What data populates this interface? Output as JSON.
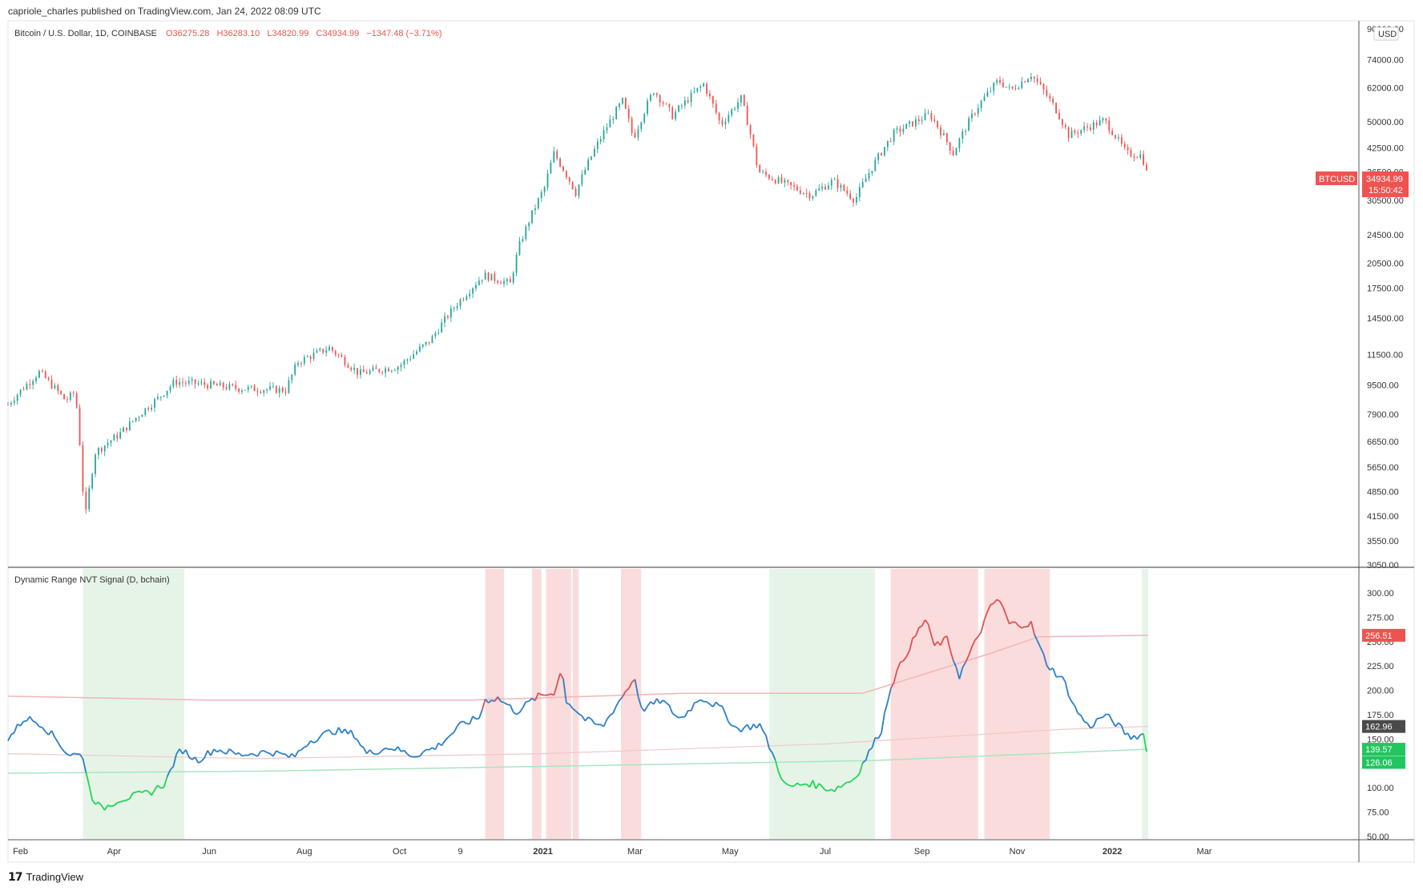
{
  "attribution": "capriole_charles published on TradingView.com, Jan 24, 2022 08:09 UTC",
  "footer": {
    "brand": "TradingView",
    "logo_icon": "tradingview-logo-icon"
  },
  "colors": {
    "up": "#26a69a",
    "down": "#ef5350",
    "nvt_blue": "#2a7fc9",
    "nvt_green": "#1fd655",
    "nvt_red": "#e05050",
    "band_red": "#f9d0d0",
    "band_green": "#e3f3e4",
    "price_tag": "#ef5350",
    "gray_tag": "#4a4a4a",
    "green_tag": "#22c55e"
  },
  "chart_data": [
    {
      "type": "candlestick",
      "title": "Bitcoin / U.S. Dollar, 1D, COINBASE",
      "ohlc_label": {
        "o": "O36275.28",
        "h": "H36283.10",
        "l": "L34820.99",
        "c": "C34934.99",
        "change": "−1347.48 (−3.71%)"
      },
      "currency": "USD",
      "y_scale": "log",
      "ylim": [
        3050,
        90000
      ],
      "y_ticks": [
        "90000.00",
        "74000.00",
        "62000.00",
        "50000.00",
        "42500.00",
        "36500.00",
        "30500.00",
        "24500.00",
        "20500.00",
        "17500.00",
        "14500.00",
        "11500.00",
        "9500.00",
        "7900.00",
        "6650.00",
        "5650.00",
        "4850.00",
        "4150.00",
        "3550.00",
        "3050.00"
      ],
      "x_ticks": [
        "Feb",
        "Apr",
        "Jun",
        "Aug",
        "Oct",
        "9",
        "2021",
        "Mar",
        "May",
        "Jul",
        "Sep",
        "Nov",
        "2022",
        "Mar"
      ],
      "x_range": [
        "2020-01-24",
        "2022-03-20"
      ],
      "price_path": [
        [
          "2020-01-24",
          8400
        ],
        [
          "2020-02-13",
          10300
        ],
        [
          "2020-03-01",
          8600
        ],
        [
          "2020-03-07",
          9100
        ],
        [
          "2020-03-12",
          4900
        ],
        [
          "2020-03-13",
          3900
        ],
        [
          "2020-03-20",
          6200
        ],
        [
          "2020-04-05",
          7000
        ],
        [
          "2020-04-30",
          8800
        ],
        [
          "2020-05-10",
          9700
        ],
        [
          "2020-06-01",
          9500
        ],
        [
          "2020-06-20",
          9300
        ],
        [
          "2020-07-20",
          9200
        ],
        [
          "2020-07-28",
          11000
        ],
        [
          "2020-08-17",
          12000
        ],
        [
          "2020-09-05",
          10200
        ],
        [
          "2020-10-01",
          10700
        ],
        [
          "2020-10-21",
          12600
        ],
        [
          "2020-11-05",
          15500
        ],
        [
          "2020-11-24",
          19000
        ],
        [
          "2020-12-11",
          18000
        ],
        [
          "2020-12-17",
          23000
        ],
        [
          "2021-01-02",
          33000
        ],
        [
          "2021-01-08",
          41000
        ],
        [
          "2021-01-22",
          32000
        ],
        [
          "2021-02-08",
          46000
        ],
        [
          "2021-02-21",
          57000
        ],
        [
          "2021-02-28",
          45000
        ],
        [
          "2021-03-13",
          61000
        ],
        [
          "2021-03-25",
          52000
        ],
        [
          "2021-04-14",
          63500
        ],
        [
          "2021-04-25",
          49000
        ],
        [
          "2021-05-08",
          58000
        ],
        [
          "2021-05-19",
          36500
        ],
        [
          "2021-06-07",
          33500
        ],
        [
          "2021-06-22",
          31500
        ],
        [
          "2021-07-06",
          34500
        ],
        [
          "2021-07-20",
          30500
        ],
        [
          "2021-08-14",
          46500
        ],
        [
          "2021-09-06",
          52500
        ],
        [
          "2021-09-21",
          41000
        ],
        [
          "2021-10-06",
          54500
        ],
        [
          "2021-10-20",
          65000
        ],
        [
          "2021-10-28",
          61000
        ],
        [
          "2021-11-10",
          67500
        ],
        [
          "2021-11-26",
          54000
        ],
        [
          "2021-12-04",
          46000
        ],
        [
          "2021-12-27",
          50500
        ],
        [
          "2022-01-10",
          41000
        ],
        [
          "2022-01-20",
          40500
        ],
        [
          "2022-01-24",
          34935
        ]
      ],
      "last_price_tag": {
        "label": "BTCUSD",
        "value": "34934.99",
        "countdown": "15:50:42"
      }
    },
    {
      "type": "line",
      "title": "Dynamic Range NVT Signal (D, bchain)",
      "ylim": [
        50,
        300
      ],
      "y_ticks": [
        "300.00",
        "275.00",
        "250.00",
        "225.00",
        "200.00",
        "175.00",
        "150.00",
        "125.00",
        "100.00",
        "75.00",
        "50.00"
      ],
      "nvt_path": [
        [
          "2020-01-24",
          150
        ],
        [
          "2020-02-04",
          172
        ],
        [
          "2020-02-14",
          166
        ],
        [
          "2020-02-24",
          150
        ],
        [
          "2020-03-02",
          135
        ],
        [
          "2020-03-12",
          133
        ],
        [
          "2020-03-17",
          93
        ],
        [
          "2020-03-24",
          78
        ],
        [
          "2020-04-04",
          88
        ],
        [
          "2020-04-24",
          95
        ],
        [
          "2020-05-04",
          105
        ],
        [
          "2020-05-09",
          125
        ],
        [
          "2020-05-14",
          140
        ],
        [
          "2020-05-24",
          128
        ],
        [
          "2020-06-05",
          140
        ],
        [
          "2020-06-20",
          134
        ],
        [
          "2020-07-10",
          137
        ],
        [
          "2020-07-25",
          131
        ],
        [
          "2020-08-04",
          148
        ],
        [
          "2020-08-20",
          159
        ],
        [
          "2020-09-02",
          155
        ],
        [
          "2020-09-10",
          135
        ],
        [
          "2020-09-25",
          142
        ],
        [
          "2020-10-10",
          133
        ],
        [
          "2020-10-25",
          142
        ],
        [
          "2020-11-10",
          165
        ],
        [
          "2020-11-21",
          172
        ],
        [
          "2020-11-25",
          190
        ],
        [
          "2020-12-03",
          192
        ],
        [
          "2020-12-15",
          178
        ],
        [
          "2020-12-28",
          193
        ],
        [
          "2021-01-08",
          198
        ],
        [
          "2021-01-13",
          222
        ],
        [
          "2021-01-16",
          190
        ],
        [
          "2021-01-28",
          170
        ],
        [
          "2021-02-08",
          162
        ],
        [
          "2021-02-20",
          192
        ],
        [
          "2021-03-01",
          213
        ],
        [
          "2021-03-05",
          180
        ],
        [
          "2021-03-18",
          190
        ],
        [
          "2021-03-30",
          170
        ],
        [
          "2021-04-12",
          193
        ],
        [
          "2021-04-25",
          182
        ],
        [
          "2021-05-05",
          160
        ],
        [
          "2021-05-20",
          165
        ],
        [
          "2021-05-26",
          143
        ],
        [
          "2021-06-06",
          100
        ],
        [
          "2021-06-20",
          105
        ],
        [
          "2021-07-06",
          98
        ],
        [
          "2021-07-20",
          110
        ],
        [
          "2021-08-01",
          145
        ],
        [
          "2021-08-06",
          160
        ],
        [
          "2021-08-12",
          205
        ],
        [
          "2021-08-21",
          235
        ],
        [
          "2021-08-30",
          262
        ],
        [
          "2021-09-04",
          275
        ],
        [
          "2021-09-08",
          245
        ],
        [
          "2021-09-17",
          252
        ],
        [
          "2021-09-25",
          215
        ],
        [
          "2021-10-04",
          245
        ],
        [
          "2021-10-15",
          285
        ],
        [
          "2021-10-20",
          295
        ],
        [
          "2021-10-27",
          268
        ],
        [
          "2021-11-10",
          268
        ],
        [
          "2021-11-15",
          245
        ],
        [
          "2021-11-21",
          225
        ],
        [
          "2021-12-01",
          210
        ],
        [
          "2021-12-08",
          182
        ],
        [
          "2021-12-17",
          162
        ],
        [
          "2021-12-27",
          175
        ],
        [
          "2022-01-04",
          165
        ],
        [
          "2022-01-12",
          152
        ],
        [
          "2022-01-22",
          155
        ],
        [
          "2022-01-24",
          126
        ]
      ],
      "upper_band_path": [
        [
          "2020-01-24",
          194
        ],
        [
          "2020-06-01",
          190
        ],
        [
          "2020-11-15",
          190
        ],
        [
          "2021-04-01",
          197
        ],
        [
          "2021-07-25",
          197
        ],
        [
          "2021-10-15",
          238
        ],
        [
          "2021-11-15",
          255
        ],
        [
          "2022-01-24",
          256.5
        ]
      ],
      "mid_band_path": [
        [
          "2020-01-24",
          135
        ],
        [
          "2020-07-01",
          130
        ],
        [
          "2021-01-01",
          135
        ],
        [
          "2021-07-01",
          145
        ],
        [
          "2021-12-01",
          160
        ],
        [
          "2022-01-24",
          163
        ]
      ],
      "lower_band_path": [
        [
          "2020-01-24",
          115
        ],
        [
          "2020-07-01",
          117
        ],
        [
          "2021-01-01",
          122
        ],
        [
          "2021-08-01",
          128
        ],
        [
          "2022-01-24",
          139.6
        ]
      ],
      "red_zones": [
        [
          "2020-11-25",
          "2020-12-07"
        ],
        [
          "2020-12-25",
          "2020-12-31"
        ],
        [
          "2021-01-03",
          "2021-01-19"
        ],
        [
          "2021-01-20",
          "2021-01-24"
        ],
        [
          "2021-02-20",
          "2021-03-05"
        ],
        [
          "2021-08-12",
          "2021-10-07"
        ],
        [
          "2021-10-11",
          "2021-11-22"
        ]
      ],
      "green_zones": [
        [
          "2020-03-12",
          "2020-05-16"
        ],
        [
          "2021-05-26",
          "2021-08-02"
        ],
        [
          "2022-01-20",
          "2022-01-24"
        ]
      ],
      "value_tags": {
        "upper": "256.51",
        "mid": "162.96",
        "lower": "139.57",
        "current": "126.06"
      }
    }
  ]
}
